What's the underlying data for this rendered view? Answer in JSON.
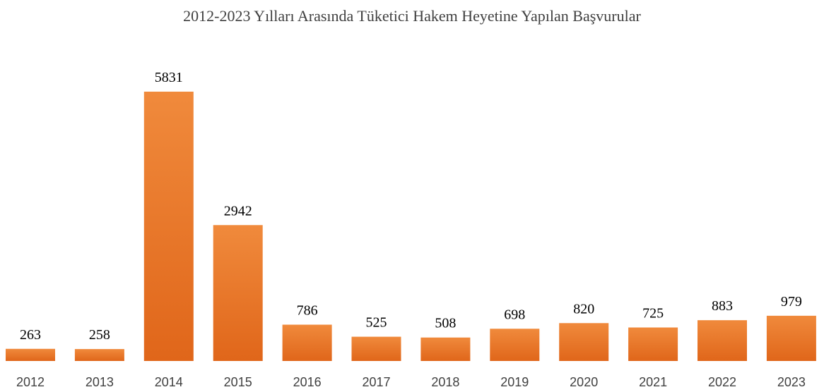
{
  "chart_data": {
    "type": "bar",
    "title": "2012-2023 Yılları Arasında Tüketici Hakem Heyetine Yapılan Başvurular",
    "categories": [
      "2012",
      "2013",
      "2014",
      "2015",
      "2016",
      "2017",
      "2018",
      "2019",
      "2020",
      "2021",
      "2022",
      "2023"
    ],
    "values": [
      263,
      258,
      5831,
      2942,
      786,
      525,
      508,
      698,
      820,
      725,
      883,
      979
    ],
    "color": "#ea7428"
  }
}
